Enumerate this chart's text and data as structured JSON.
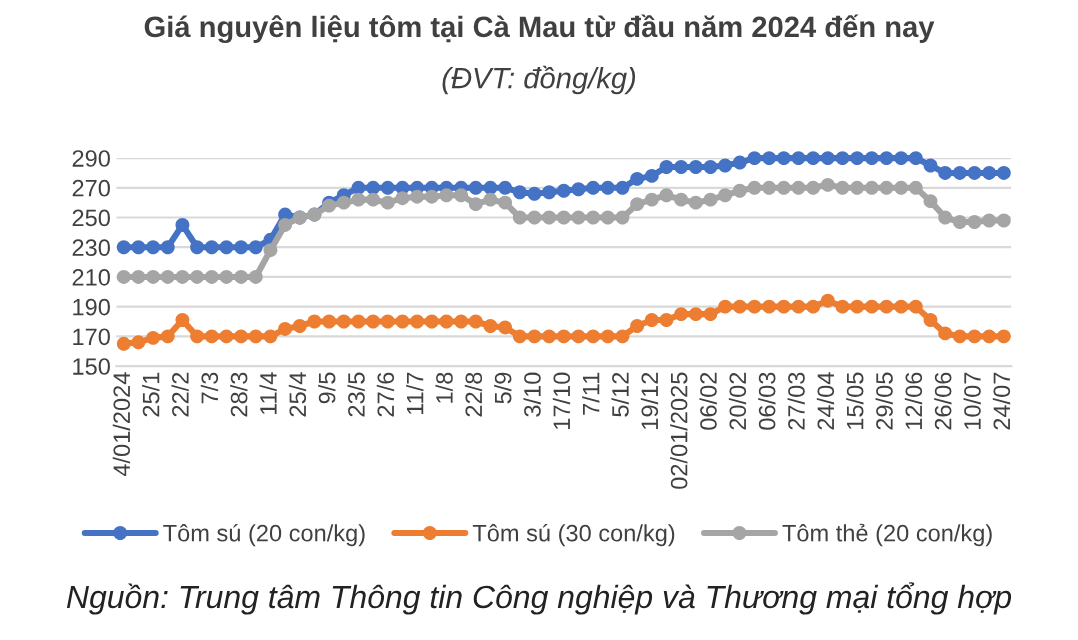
{
  "chart_data": {
    "type": "line",
    "title": "Giá nguyên liệu tôm tại Cà Mau từ đầu năm 2024 đến nay",
    "subtitle": "(ĐVT: đồng/kg)",
    "annotations": [
      "Nguồn: Trung tâm Thông tin Công nghiệp và Thương mại tổng hợp"
    ],
    "categories": [
      "4/01/2024",
      null,
      "25/1",
      null,
      "22/2",
      null,
      "7/3",
      null,
      "28/3",
      null,
      "11/4",
      null,
      "25/4",
      null,
      "9/5",
      null,
      "23/5",
      null,
      "27/6",
      null,
      "11/7",
      null,
      "1/8",
      null,
      "22/8",
      null,
      "5/9",
      null,
      "3/10",
      null,
      "17/10",
      null,
      "7/11",
      null,
      "5/12",
      null,
      "19/12",
      null,
      "02/01/2025",
      null,
      "06/02",
      null,
      "20/02",
      null,
      "06/03",
      null,
      "27/03",
      null,
      "24/04",
      null,
      "15/05",
      null,
      "29/05",
      null,
      "12/06",
      null,
      "26/06",
      null,
      "10/07",
      null,
      "24/07"
    ],
    "series": [
      {
        "name": "Tôm sú (20 con/kg)",
        "color": "#4472c4",
        "values": [
          230,
          230,
          230,
          230,
          245,
          230,
          230,
          230,
          230,
          230,
          235,
          252,
          250,
          252,
          260,
          265,
          270,
          270,
          270,
          270,
          270,
          270,
          270,
          270,
          270,
          270,
          270,
          267,
          266,
          267,
          268,
          269,
          270,
          270,
          270,
          276,
          278,
          284,
          284,
          284,
          284,
          285,
          287,
          290,
          290,
          290,
          290,
          290,
          290,
          290,
          290,
          290,
          290,
          290,
          290,
          285,
          280,
          280,
          280,
          280,
          280
        ]
      },
      {
        "name": "Tôm sú (30 con/kg)",
        "color": "#ed7d31",
        "values": [
          165,
          166,
          169,
          170,
          181,
          170,
          170,
          170,
          170,
          170,
          170,
          175,
          177,
          180,
          180,
          180,
          180,
          180,
          180,
          180,
          180,
          180,
          180,
          180,
          180,
          177,
          176,
          170,
          170,
          170,
          170,
          170,
          170,
          170,
          170,
          177,
          181,
          181,
          185,
          185,
          185,
          190,
          190,
          190,
          190,
          190,
          190,
          190,
          194,
          190,
          190,
          190,
          190,
          190,
          190,
          181,
          172,
          170,
          170,
          170,
          170
        ]
      },
      {
        "name": "Tôm thẻ (20 con/kg)",
        "color": "#a5a5a5",
        "values": [
          210,
          210,
          210,
          210,
          210,
          210,
          210,
          210,
          210,
          210,
          228,
          245,
          250,
          252,
          258,
          260,
          262,
          262,
          260,
          263,
          264,
          264,
          265,
          265,
          259,
          262,
          260,
          250,
          250,
          250,
          250,
          250,
          250,
          250,
          250,
          259,
          262,
          265,
          262,
          260,
          262,
          265,
          268,
          270,
          270,
          270,
          270,
          270,
          272,
          270,
          270,
          270,
          270,
          270,
          270,
          261,
          250,
          247,
          247,
          248,
          248
        ]
      }
    ],
    "ylim": [
      150,
      290
    ],
    "yticks": [
      150,
      170,
      190,
      210,
      230,
      250,
      270,
      290
    ],
    "grid": "y",
    "legend": "bottom",
    "marker": "circle",
    "line_style": "solid"
  }
}
